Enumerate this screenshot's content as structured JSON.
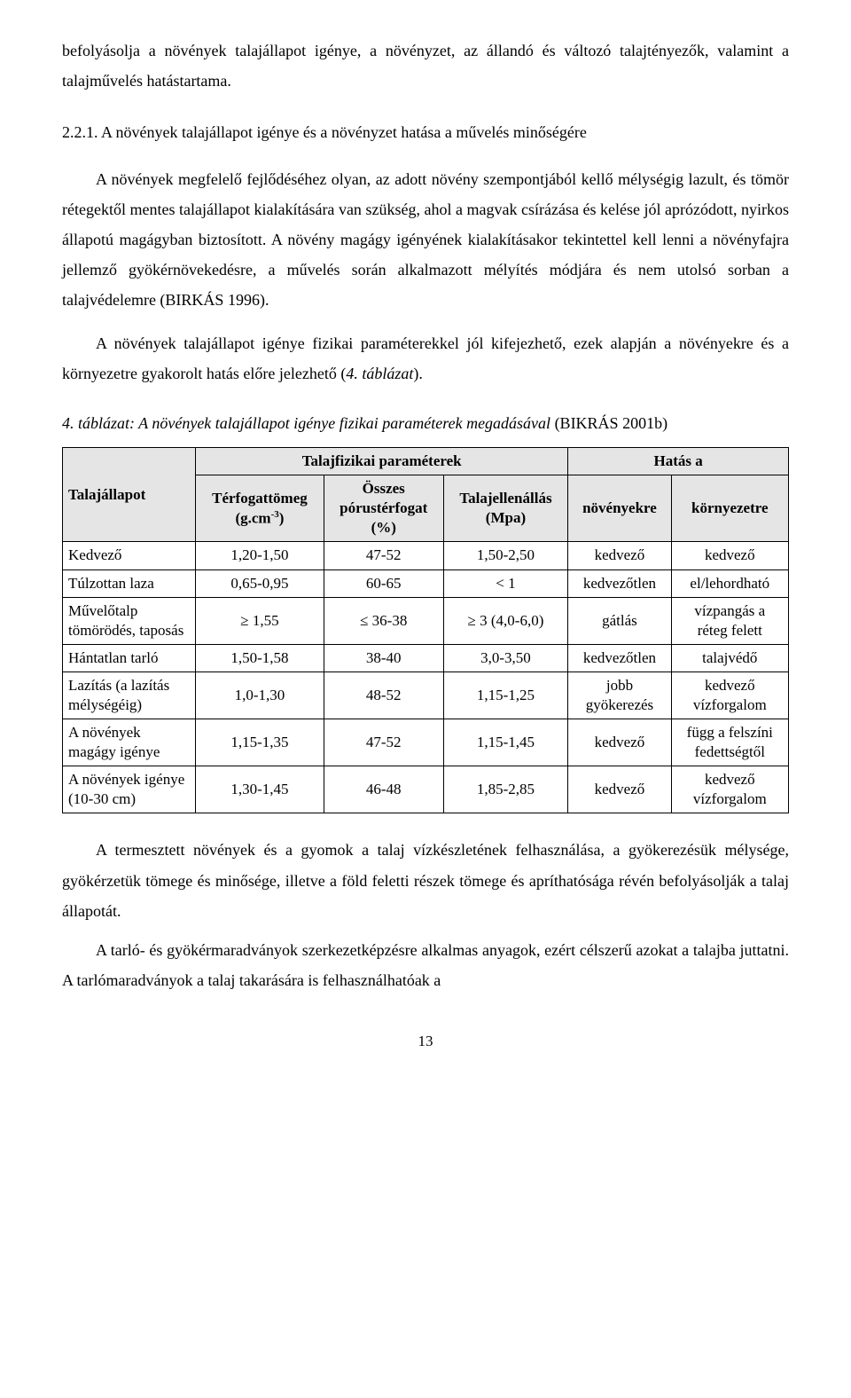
{
  "intro1": "befolyásolja a növények talajállapot igénye, a növényzet, az állandó és változó talajtényezők, valamint a talajművelés hatástartama.",
  "sectionNum": "2.2.1. A növények talajállapot igénye és a növényzet hatása a művelés minőségére",
  "p1": "A növények megfelelő fejlődéséhez olyan, az adott növény szempontjából kellő mélységig lazult, és tömör rétegektől mentes talajállapot kialakítására van szükség, ahol a magvak csírázása és kelése jól aprózódott, nyirkos állapotú magágyban biztosított. A növény magágy igényének kialakításakor tekintettel kell lenni a növényfajra jellemző gyökérnövekedésre, a művelés során alkalmazott mélyítés módjára és nem utolsó sorban a talajvédelemre (BIRKÁS 1996).",
  "p2a": "A növények talajállapot igénye fizikai paraméterekkel jól kifejezhető, ezek alapján a növényekre és a környezetre gyakorolt hatás előre jelezhető (",
  "p2italic": "4. táblázat",
  "p2b": ").",
  "tableLabel1": "4. táblázat: A növények talajállapot igénye fizikai paraméterek megadásával",
  "tableLabel2": " (BIKRÁS 2001b)",
  "table": {
    "headers": {
      "c0": "Talajállapot",
      "spanPhys": "Talajfizikai paraméterek",
      "spanEffect": "Hatás a",
      "c1a": "Térfogattömeg",
      "c1b": "(g.cm",
      "c1sup": "-3",
      "c1c": ")",
      "c2a": "Összes",
      "c2b": "pórustérfogat",
      "c2c": "(%)",
      "c3a": "Talajellenállás",
      "c3b": "(Mpa)",
      "c4": "növényekre",
      "c5": "környezetre"
    },
    "rows": [
      {
        "c0": "Kedvező",
        "c1": "1,20-1,50",
        "c2": "47-52",
        "c3": "1,50-2,50",
        "c4": "kedvező",
        "c5": "kedvező"
      },
      {
        "c0": "Túlzottan laza",
        "c1": "0,65-0,95",
        "c2": "60-65",
        "c3": "< 1",
        "c4": "kedvezőtlen",
        "c5": "el/lehordható"
      },
      {
        "c0": "Művelőtalp\ntömörödés, taposás",
        "c1": "≥ 1,55",
        "c2": "≤ 36-38",
        "c3": "≥ 3 (4,0-6,0)",
        "c4": "gátlás",
        "c5": "vízpangás a\nréteg felett"
      },
      {
        "c0": "Hántatlan tarló",
        "c1": "1,50-1,58",
        "c2": "38-40",
        "c3": "3,0-3,50",
        "c4": "kedvezőtlen",
        "c5": "talajvédő"
      },
      {
        "c0": "Lazítás (a lazítás\nmélységéig)",
        "c1": "1,0-1,30",
        "c2": "48-52",
        "c3": "1,15-1,25",
        "c4": "jobb\ngyökerezés",
        "c5": "kedvező\nvízforgalom"
      },
      {
        "c0": "A növények\nmagágy igénye",
        "c1": "1,15-1,35",
        "c2": "47-52",
        "c3": "1,15-1,45",
        "c4": "kedvező",
        "c5": "függ a felszíni\nfedettségtől"
      },
      {
        "c0": "A növények igénye\n(10-30 cm)",
        "c1": "1,30-1,45",
        "c2": "46-48",
        "c3": "1,85-2,85",
        "c4": "kedvező",
        "c5": "kedvező\nvízforgalom"
      }
    ]
  },
  "p3": "A termesztett növények és a gyomok a talaj vízkészletének felhasználása, a gyökerezésük mélysége, gyökérzetük tömege és minősége, illetve a föld feletti részek tömege és apríthatósága révén befolyásolják a talaj állapotát.",
  "p4": "A tarló- és gyökérmaradványok szerkezetképzésre alkalmas anyagok, ezért célszerű azokat a talajba juttatni. A tarlómaradványok a talaj takarására is felhasználhatóak a",
  "pageNum": "13"
}
